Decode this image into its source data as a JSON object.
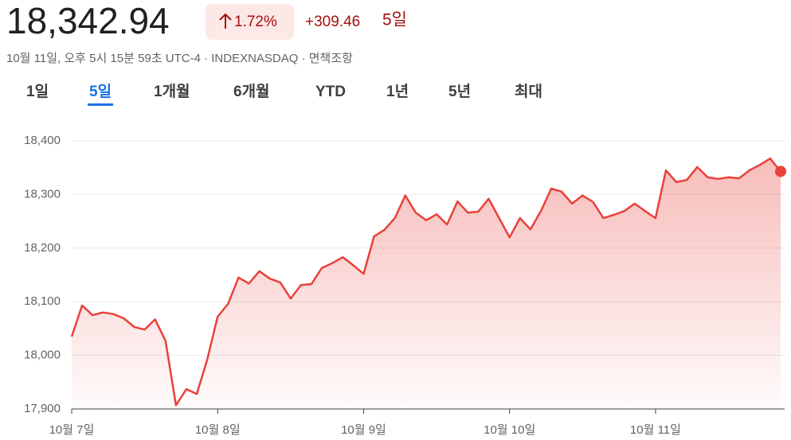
{
  "header": {
    "price": "18,342.94",
    "change_pct": "1.72%",
    "change": "+309.46",
    "period": "5일",
    "subtitle": "10월 11일, 오후 5시 15분 59초 UTC-4 · INDEXNASDAQ · 면책조항"
  },
  "tabs": [
    "1일",
    "5일",
    "1개월",
    "6개월",
    "YTD",
    "1년",
    "5년",
    "최대"
  ],
  "active_tab": "5일",
  "chart_data": {
    "type": "line",
    "color": "#e8413a",
    "grid": true,
    "categories": [
      "10월 7일",
      null,
      null,
      null,
      null,
      null,
      null,
      null,
      null,
      null,
      null,
      null,
      null,
      null,
      "10월 8일",
      null,
      null,
      null,
      null,
      null,
      null,
      null,
      null,
      null,
      null,
      null,
      null,
      null,
      "10월 9일",
      null,
      null,
      null,
      null,
      null,
      null,
      null,
      null,
      null,
      null,
      null,
      null,
      null,
      "10월 10일",
      null,
      null,
      null,
      null,
      null,
      null,
      null,
      null,
      null,
      null,
      null,
      null,
      null,
      "10월 11일",
      null,
      null,
      null,
      null,
      null,
      null,
      null,
      null,
      null,
      null,
      null,
      null
    ],
    "values": [
      18035,
      18093,
      18075,
      18080,
      18077,
      18069,
      18053,
      18048,
      18067,
      18027,
      17907,
      17937,
      17928,
      17992,
      18072,
      18096,
      18145,
      18134,
      18157,
      18143,
      18136,
      18106,
      18131,
      18133,
      18163,
      18172,
      18183,
      18168,
      18152,
      18222,
      18234,
      18256,
      18298,
      18266,
      18252,
      18263,
      18244,
      18287,
      18266,
      18268,
      18292,
      18256,
      18220,
      18256,
      18235,
      18269,
      18311,
      18305,
      18283,
      18298,
      18286,
      18256,
      18262,
      18269,
      18283,
      18269,
      18256,
      18345,
      18323,
      18327,
      18351,
      18332,
      18329,
      18332,
      18330,
      18345,
      18355,
      18367,
      18342.94
    ],
    "ylim": [
      17900,
      18400
    ],
    "yticks": [
      {
        "value": 17900,
        "label": "17,900"
      },
      {
        "value": 18000,
        "label": "18,000"
      },
      {
        "value": 18100,
        "label": "18,100"
      },
      {
        "value": 18200,
        "label": "18,200"
      },
      {
        "value": 18300,
        "label": "18,300"
      },
      {
        "value": 18400,
        "label": "18,400"
      }
    ]
  }
}
